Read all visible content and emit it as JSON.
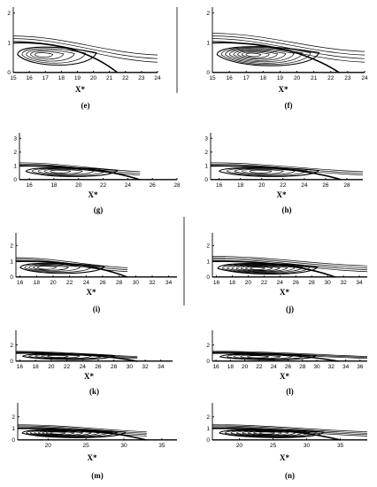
{
  "figure": {
    "panels": [
      {
        "id": "e",
        "caption": "(e)",
        "x_label": "X*",
        "x_ticks": [
          "15",
          "16",
          "17",
          "18",
          "19",
          "20",
          "21",
          "22",
          "23",
          "24"
        ],
        "y_ticks": [
          "0",
          "1",
          "2"
        ],
        "xlim": [
          15,
          24
        ],
        "ylim": [
          0,
          2.2
        ],
        "loop_center_x": 16.7,
        "loop_center_y": 0.6,
        "stream_end_x": 24,
        "reattach_x": 21.5,
        "dense": false
      },
      {
        "id": "f",
        "caption": "(f)",
        "x_label": "X*",
        "x_ticks": [
          "15",
          "16",
          "17",
          "18",
          "19",
          "20",
          "21",
          "22",
          "23",
          "24"
        ],
        "y_ticks": [
          "0",
          "1",
          "2"
        ],
        "xlim": [
          15,
          24
        ],
        "ylim": [
          0,
          2.2
        ],
        "loop_center_x": 17.3,
        "loop_center_y": 0.6,
        "stream_end_x": 24,
        "reattach_x": 22.5,
        "dense": true
      },
      {
        "id": "g",
        "caption": "(g)",
        "x_label": "X*",
        "x_ticks": [
          "16",
          "18",
          "20",
          "22",
          "24",
          "26",
          "28"
        ],
        "y_ticks": [
          "0",
          "1",
          "2",
          "3"
        ],
        "xlim": [
          15.2,
          28
        ],
        "ylim": [
          0,
          3.4
        ],
        "loop_center_x": 18.3,
        "loop_center_y": 0.6,
        "stream_end_x": 25,
        "reattach_x": 25,
        "dense": false
      },
      {
        "id": "h",
        "caption": "(h)",
        "x_label": "X*",
        "x_ticks": [
          "16",
          "18",
          "20",
          "22",
          "24",
          "26",
          "28"
        ],
        "y_ticks": [
          "0",
          "1",
          "2",
          "3"
        ],
        "xlim": [
          15.2,
          29.5
        ],
        "ylim": [
          0,
          3.4
        ],
        "loop_center_x": 19.7,
        "loop_center_y": 0.6,
        "stream_end_x": 29.5,
        "reattach_x": 27.5,
        "dense": false
      },
      {
        "id": "i",
        "caption": "(i)",
        "x_label": "X*",
        "x_ticks": [
          "16",
          "18",
          "20",
          "22",
          "24",
          "26",
          "28",
          "30",
          "32",
          "34"
        ],
        "y_ticks": [
          "0",
          "1",
          "2"
        ],
        "xlim": [
          15.5,
          35
        ],
        "ylim": [
          0,
          2.8
        ],
        "loop_center_x": 18.8,
        "loop_center_y": 0.6,
        "stream_end_x": 29,
        "reattach_x": 29,
        "dense": false
      },
      {
        "id": "j",
        "caption": "(j)",
        "x_label": "X*",
        "x_ticks": [
          "16",
          "18",
          "20",
          "22",
          "24",
          "26",
          "28",
          "30",
          "32",
          "34"
        ],
        "y_ticks": [
          "0",
          "1",
          "2"
        ],
        "xlim": [
          15.5,
          35
        ],
        "ylim": [
          0,
          2.8
        ],
        "loop_center_x": 21,
        "loop_center_y": 0.55,
        "stream_end_x": 35,
        "reattach_x": 31,
        "dense": true
      },
      {
        "id": "k",
        "caption": "(k)",
        "x_label": "X*",
        "x_ticks": [
          "16",
          "18",
          "20",
          "22",
          "24",
          "26",
          "28",
          "30",
          "32",
          "34"
        ],
        "y_ticks": [
          "0",
          "2"
        ],
        "xlim": [
          15.5,
          35.5
        ],
        "ylim": [
          0,
          3.8
        ],
        "loop_center_x": 20.5,
        "loop_center_y": 0.6,
        "stream_end_x": 31,
        "reattach_x": 31,
        "dense": false
      },
      {
        "id": "l",
        "caption": "(l)",
        "x_label": "X*",
        "x_ticks": [
          "16",
          "18",
          "20",
          "22",
          "24",
          "26",
          "28",
          "30",
          "32",
          "34",
          "36"
        ],
        "y_ticks": [
          "0",
          "2"
        ],
        "xlim": [
          15.5,
          37
        ],
        "ylim": [
          0,
          3.8
        ],
        "loop_center_x": 21.5,
        "loop_center_y": 0.55,
        "stream_end_x": 37,
        "reattach_x": 33,
        "dense": false
      },
      {
        "id": "m",
        "caption": "(m)",
        "x_label": "X*",
        "x_ticks": [
          "20",
          "25",
          "30",
          "35"
        ],
        "y_ticks": [
          "0",
          "1",
          "2"
        ],
        "xlim": [
          16,
          37
        ],
        "ylim": [
          0,
          3.2
        ],
        "loop_center_x": 21,
        "loop_center_y": 0.6,
        "stream_end_x": 33,
        "reattach_x": 33,
        "dense": true
      },
      {
        "id": "n",
        "caption": "(n)",
        "x_label": "X*",
        "x_ticks": [
          "20",
          "25",
          "30",
          "35"
        ],
        "y_ticks": [
          "0",
          "1",
          "2"
        ],
        "xlim": [
          16,
          39
        ],
        "ylim": [
          0,
          3.2
        ],
        "loop_center_x": 24,
        "loop_center_y": 0.6,
        "stream_end_x": 39,
        "reattach_x": 35,
        "dense": true
      }
    ]
  }
}
